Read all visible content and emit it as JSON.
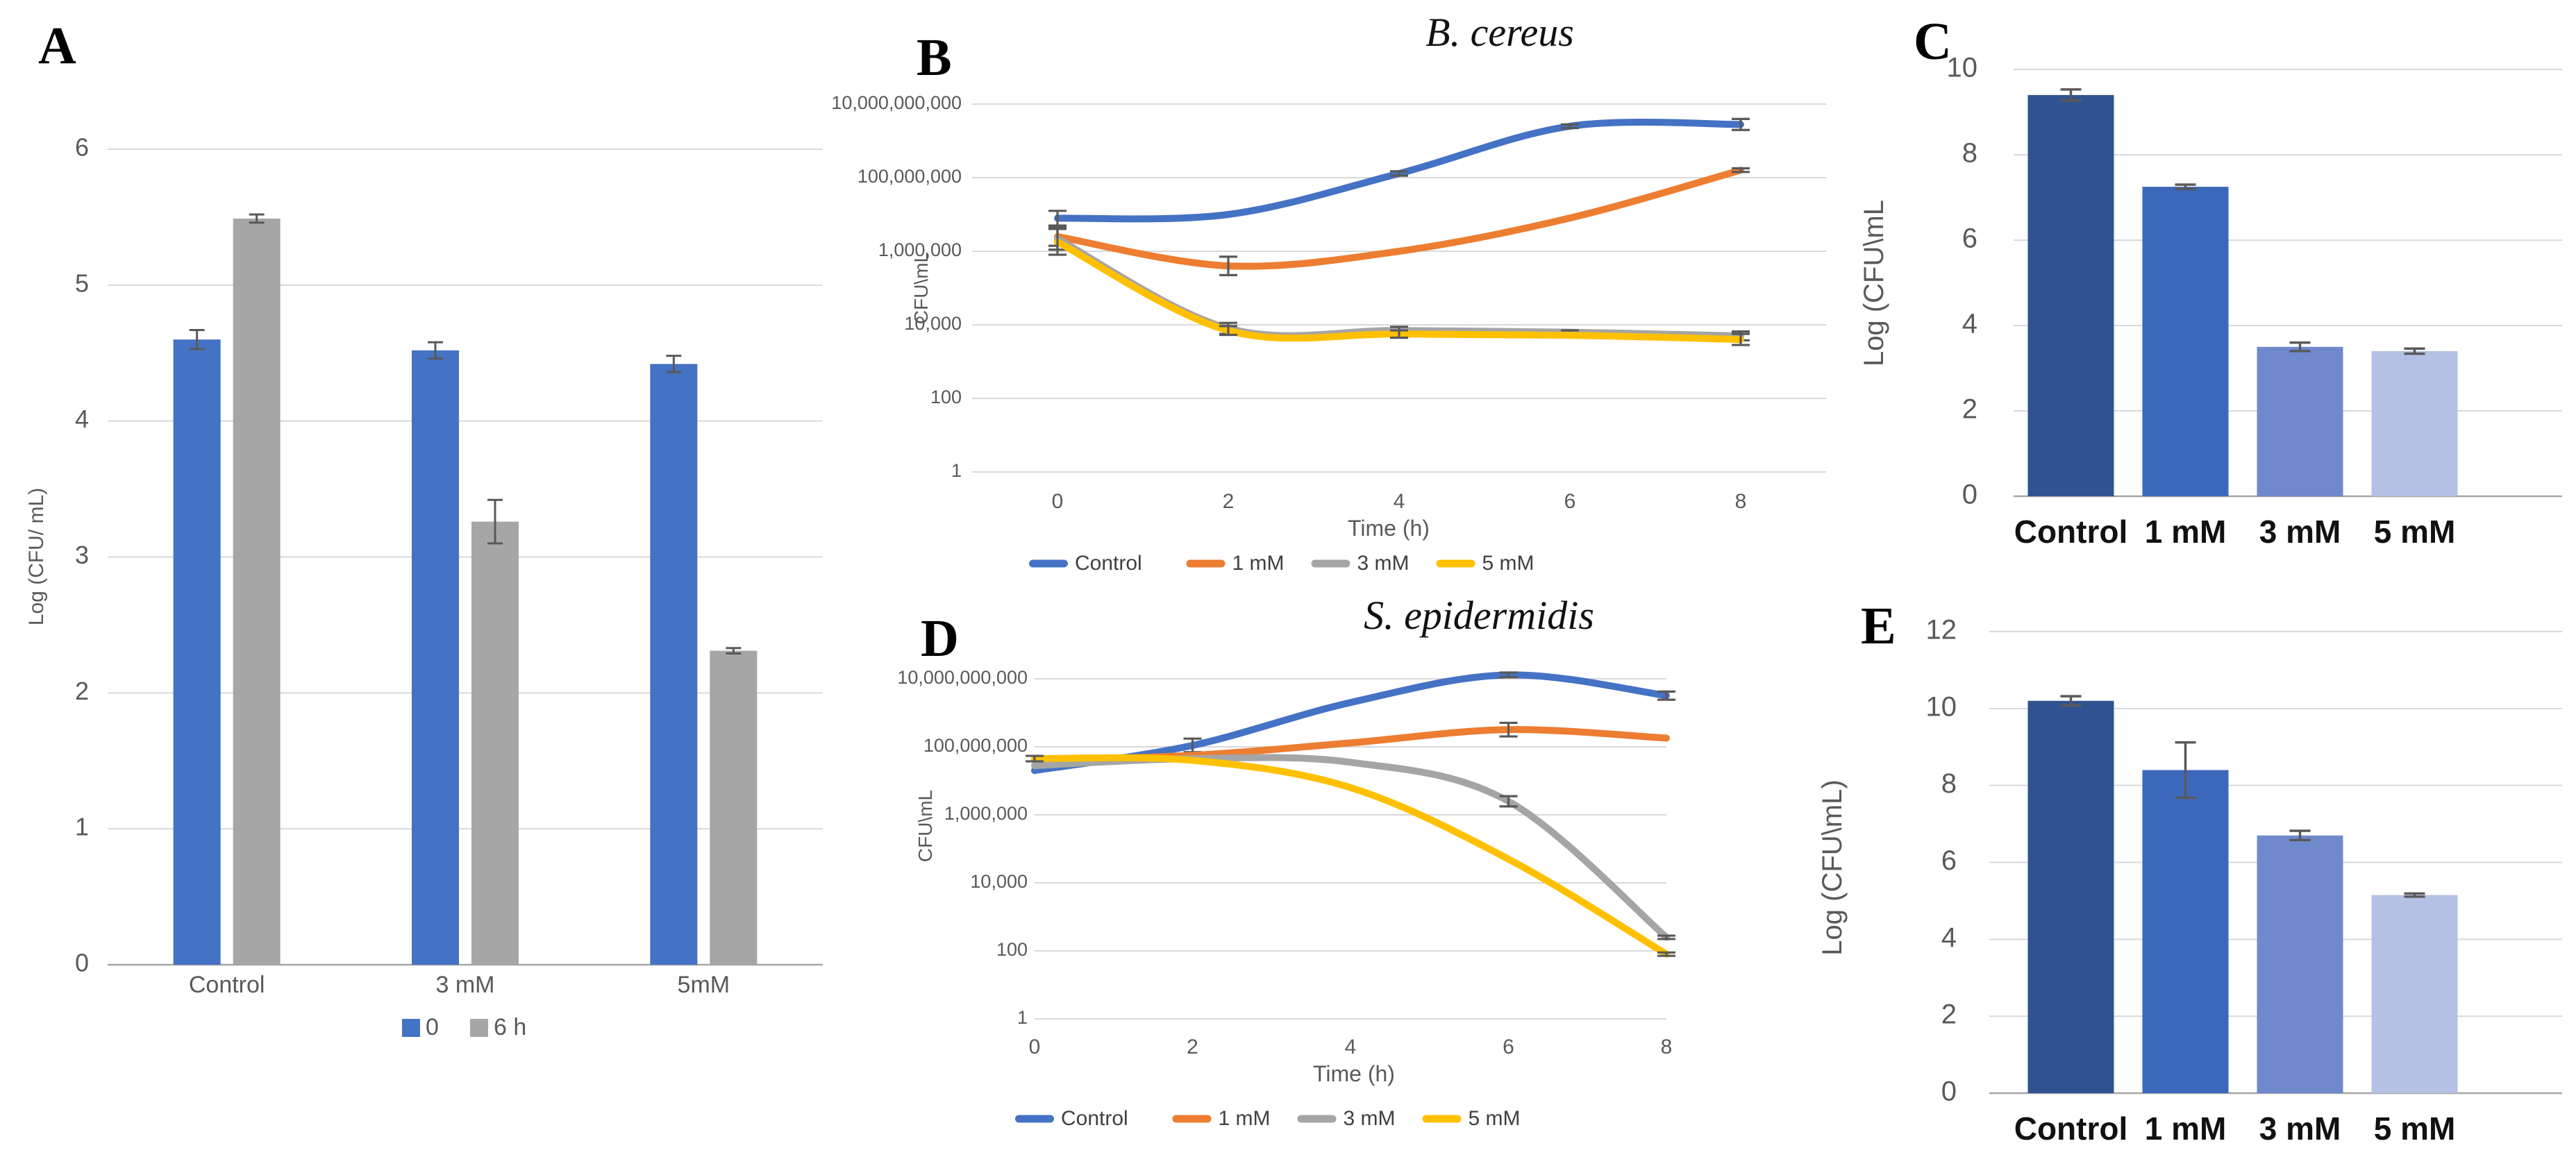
{
  "figure": {
    "panels": [
      {
        "id": "A",
        "letter": "A"
      },
      {
        "id": "B",
        "letter": "B",
        "title": "B. cereus"
      },
      {
        "id": "C",
        "letter": "C"
      },
      {
        "id": "D",
        "letter": "D",
        "title": "S. epidermidis"
      },
      {
        "id": "E",
        "letter": "E"
      }
    ]
  },
  "chart_data": [
    {
      "panel": "A",
      "type": "bar",
      "grouped": true,
      "categories": [
        "Control",
        "3 mM",
        "5mM"
      ],
      "series": [
        {
          "name": "0",
          "color": "#4472c4",
          "values": [
            4.6,
            4.52,
            4.42
          ],
          "errors": [
            0.07,
            0.06,
            0.06
          ]
        },
        {
          "name": "6 h",
          "color": "#a6a6a6",
          "values": [
            5.49,
            3.26,
            2.31
          ],
          "errors": [
            0.03,
            0.16,
            0.02
          ]
        }
      ],
      "ylabel": "Log (CFU/ mL)",
      "xlabel": "",
      "ylim": [
        0,
        6
      ],
      "yticks": [
        0,
        1,
        2,
        3,
        4,
        5,
        6
      ],
      "grid": true,
      "legend_position": "bottom"
    },
    {
      "panel": "B",
      "type": "line",
      "title": "B. cereus",
      "xlabel": "Time (h)",
      "ylabel": "CFU\\mL",
      "x": [
        0,
        2,
        4,
        6,
        8
      ],
      "yscale": "log",
      "ylim": [
        1,
        10000000000
      ],
      "ytick_labels": [
        "1",
        "100",
        "10,000",
        "1,000,000",
        "100,000,000",
        "10,000,000,000"
      ],
      "grid": true,
      "legend_position": "bottom",
      "series": [
        {
          "name": "Control",
          "color": "#4472c4",
          "values": [
            7900000,
            10000000,
            130000000,
            2500000000,
            2800000000
          ],
          "error_decades": [
            0.2,
            0,
            0.06,
            0.05,
            0.15
          ]
        },
        {
          "name": "1 mM",
          "color": "#ed7d31",
          "values": [
            2500000,
            400000,
            1000000,
            8000000,
            160000000
          ],
          "error_decades": [
            0.25,
            0.25,
            0,
            0,
            0.05
          ]
        },
        {
          "name": "3 mM",
          "color": "#a5a5a5",
          "values": [
            2200000,
            8000,
            7000,
            6300,
            5000
          ],
          "error_decades": [
            0.3,
            0.15,
            0.1,
            0.05,
            0.12
          ]
        },
        {
          "name": "5 mM",
          "color": "#ffc000",
          "values": [
            1800000,
            7000,
            5600,
            5200,
            4000
          ],
          "error_decades": [
            0.35,
            0.12,
            0.1,
            0,
            0.15
          ]
        }
      ]
    },
    {
      "panel": "C",
      "type": "bar",
      "grouped": false,
      "categories": [
        "Control",
        "1 mM",
        "3 mM",
        "5 mM"
      ],
      "values": [
        9.4,
        7.25,
        3.5,
        3.4
      ],
      "errors": [
        0.13,
        0.05,
        0.1,
        0.06
      ],
      "bar_colors": [
        "#2f5391",
        "#3c68bb",
        "#7089cd",
        "#b4c1e4"
      ],
      "ylabel": "Log (CFU\\mL",
      "xlabel": "",
      "ylim": [
        0,
        10
      ],
      "yticks": [
        0,
        2,
        4,
        6,
        8,
        10
      ],
      "grid": true
    },
    {
      "panel": "D",
      "type": "line",
      "title": "S. epidermidis",
      "xlabel": "Time (h)",
      "ylabel": "CFU\\mL",
      "x": [
        0,
        2,
        4,
        6,
        8
      ],
      "yscale": "log",
      "ylim": [
        1,
        10000000000
      ],
      "ytick_labels": [
        "1",
        "100",
        "10,000",
        "1,000,000",
        "100,000,000",
        "10,000,000,000"
      ],
      "grid": true,
      "legend_position": "bottom",
      "series": [
        {
          "name": "Control",
          "color": "#4472c4",
          "values": [
            20000000,
            110000000,
            2000000000,
            13000000000,
            3200000000
          ],
          "error_decades": [
            0,
            0.2,
            0,
            0.07,
            0.12
          ]
        },
        {
          "name": "1 mM",
          "color": "#ed7d31",
          "values": [
            40000000,
            56000000,
            130000000,
            320000000,
            180000000
          ],
          "error_decades": [
            0,
            0,
            0,
            0.2,
            0
          ]
        },
        {
          "name": "3 mM",
          "color": "#a5a5a5",
          "values": [
            28000000,
            45000000,
            35000000,
            2500000,
            250
          ],
          "error_decades": [
            0,
            0,
            0,
            0.15,
            0.05
          ]
        },
        {
          "name": "5 mM",
          "color": "#ffc000",
          "values": [
            45000000,
            40000000,
            6300000,
            50000,
            80
          ],
          "error_decades": [
            0.08,
            0,
            0,
            0,
            0.05
          ]
        }
      ]
    },
    {
      "panel": "E",
      "type": "bar",
      "grouped": false,
      "categories": [
        "Control",
        "1 mM",
        "3 mM",
        "5 mM"
      ],
      "values": [
        10.2,
        8.4,
        6.7,
        5.15
      ],
      "errors": [
        0.12,
        0.72,
        0.12,
        0.04
      ],
      "bar_colors": [
        "#2f5391",
        "#3c68bb",
        "#7089cd",
        "#b4c1e4"
      ],
      "ylabel": "Log (CFU\\mL)",
      "xlabel": "",
      "ylim": [
        0,
        12
      ],
      "yticks": [
        0,
        2,
        4,
        6,
        8,
        10,
        12
      ],
      "grid": true
    }
  ],
  "style": {
    "grid_color": "#d9d9d9",
    "axis_color": "#a6a6a6",
    "tick_color": "#595959",
    "error_color": "#595959",
    "legend_text_color": "#404040"
  }
}
